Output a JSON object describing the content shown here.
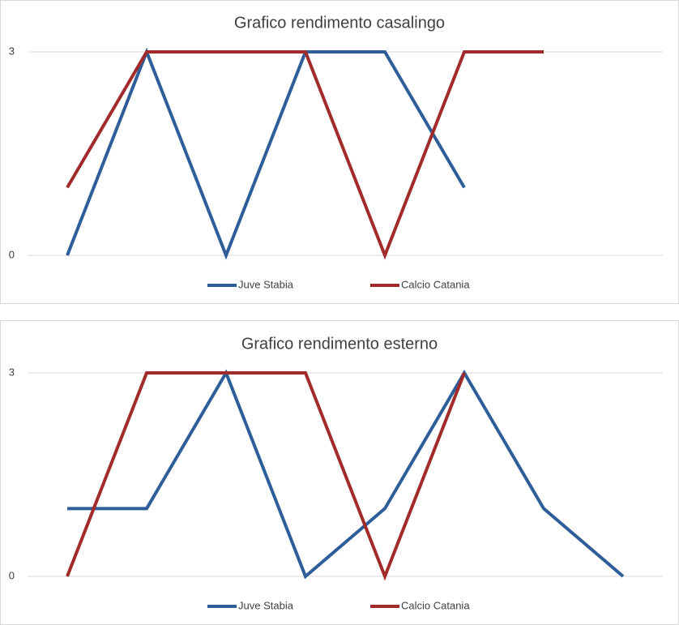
{
  "chart_data": [
    {
      "type": "line",
      "title": "Grafico rendimento casalingo",
      "categories": [
        null,
        null,
        null,
        null,
        null,
        null,
        null,
        null
      ],
      "series": [
        {
          "name": "Juve Stabia",
          "color": "#2e5e99",
          "values": [
            0,
            3,
            0,
            3,
            3,
            1,
            null,
            null
          ]
        },
        {
          "name": "Calcio Catania",
          "color": "#a12b2b",
          "values": [
            1,
            3,
            3,
            3,
            0,
            3,
            3,
            null
          ]
        }
      ],
      "ylim": [
        0,
        3
      ],
      "yticks": [
        0,
        3
      ],
      "grid": true,
      "legend": "bottom"
    },
    {
      "type": "line",
      "title": "Grafico rendimento esterno",
      "categories": [
        null,
        null,
        null,
        null,
        null,
        null,
        null,
        null
      ],
      "series": [
        {
          "name": "Juve Stabia",
          "color": "#2e5e99",
          "values": [
            1,
            1,
            3,
            0,
            1,
            3,
            1,
            0
          ]
        },
        {
          "name": "Calcio Catania",
          "color": "#a12b2b",
          "values": [
            0,
            3,
            3,
            3,
            0,
            3,
            null,
            null
          ]
        }
      ],
      "ylim": [
        0,
        3
      ],
      "yticks": [
        0,
        3
      ],
      "grid": true,
      "legend": "bottom"
    }
  ]
}
